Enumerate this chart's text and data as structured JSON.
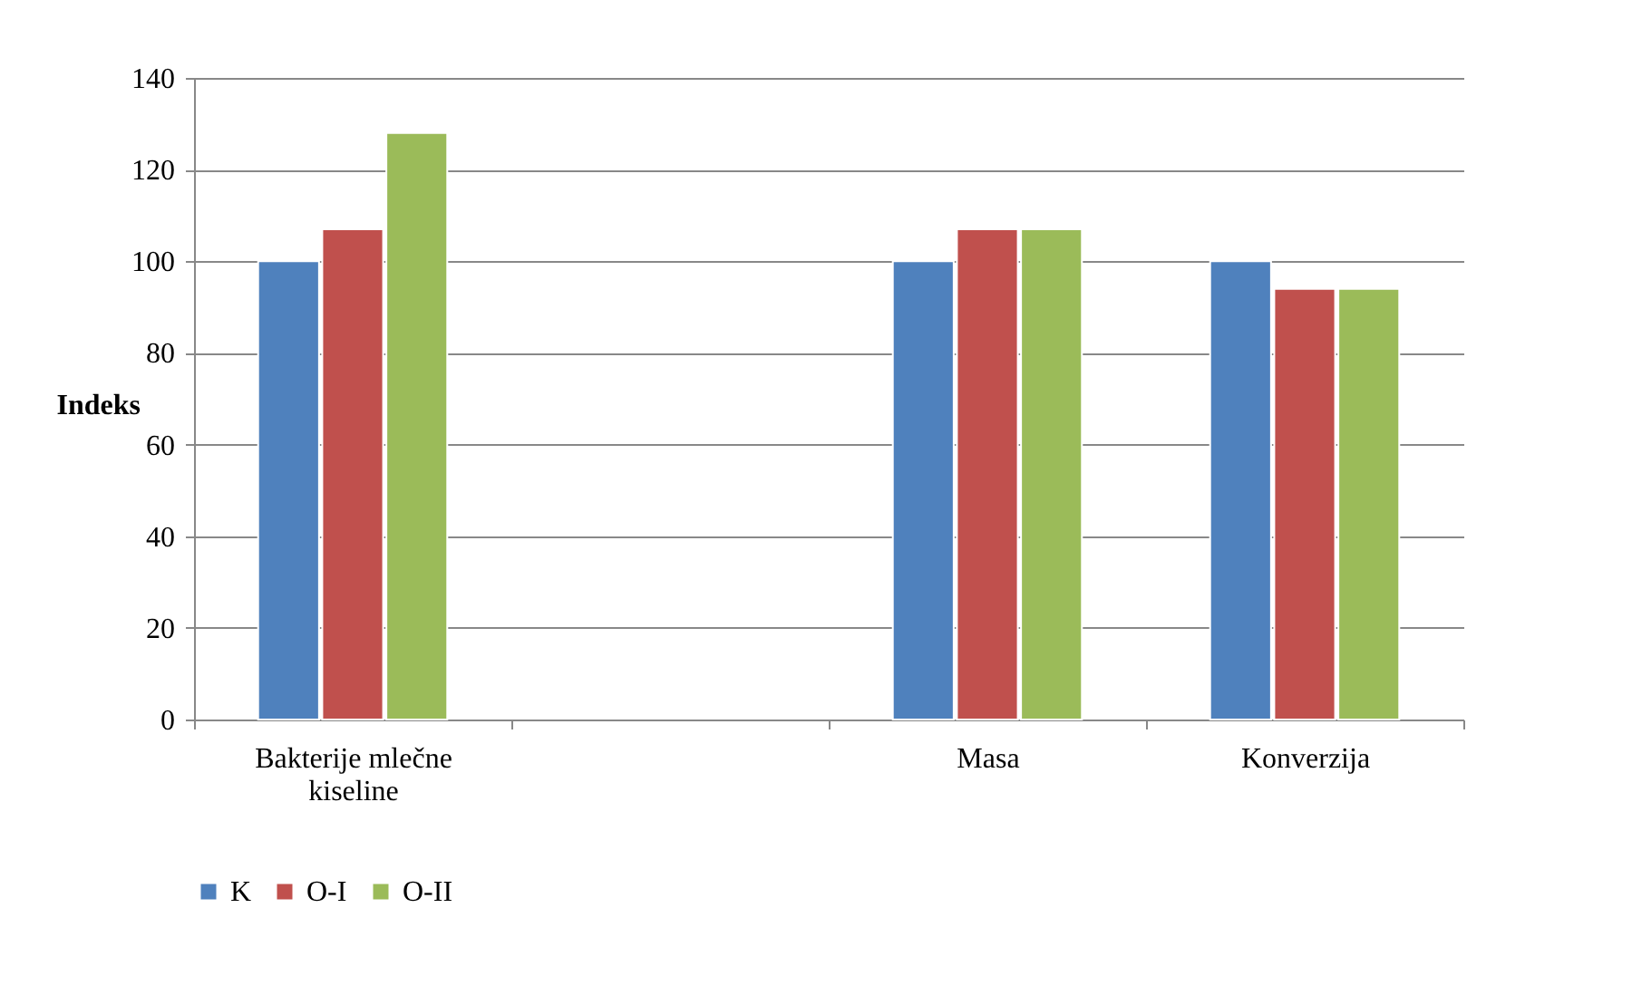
{
  "chart_data": {
    "type": "bar",
    "ylabel": "Indeks",
    "categories": [
      "Bakterije mlečne kiseline",
      null,
      "Masa",
      "Konverzija"
    ],
    "series": [
      {
        "name": "K",
        "color": "#4f81bd",
        "values": [
          100,
          null,
          100,
          100
        ]
      },
      {
        "name": "O-I",
        "color": "#c0504d",
        "values": [
          107,
          null,
          107,
          94
        ]
      },
      {
        "name": "O-II",
        "color": "#9bbb59",
        "values": [
          128,
          null,
          107,
          94
        ]
      }
    ],
    "ylim": [
      0,
      140
    ],
    "yticks": [
      0,
      20,
      40,
      60,
      80,
      100,
      120,
      140
    ],
    "grid": "y",
    "legend": "bottom"
  }
}
